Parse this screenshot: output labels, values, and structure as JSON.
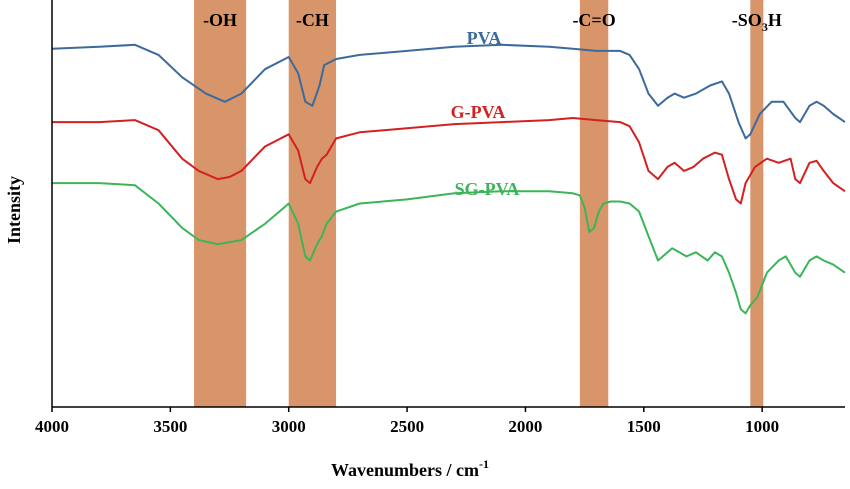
{
  "chart_data": {
    "type": "line",
    "title": "",
    "xlabel": "Wavenumbers / cm",
    "xlabel_superscript": "-1",
    "ylabel": "Intensity",
    "xlim": [
      4000,
      650
    ],
    "x_reversed": true,
    "ylim": [
      0,
      100
    ],
    "grid": false,
    "x_ticks": [
      4000,
      3500,
      3000,
      2500,
      2000,
      1500,
      1000
    ],
    "bands": [
      {
        "label": "-OH",
        "from": 3400,
        "to": 3180
      },
      {
        "label": "-CH",
        "from": 3000,
        "to": 2800
      },
      {
        "label": "-C=O",
        "from": 1770,
        "to": 1650
      },
      {
        "label": "-SO",
        "label_sub": "3",
        "label_suffix": "H",
        "from": 1050,
        "to": 995
      }
    ],
    "band_color": "#d8956a",
    "series": [
      {
        "name": "PVA",
        "color": "#3c6a9c",
        "points": [
          [
            4000,
            88
          ],
          [
            3800,
            88.5
          ],
          [
            3650,
            89
          ],
          [
            3550,
            86.5
          ],
          [
            3450,
            81
          ],
          [
            3350,
            77
          ],
          [
            3270,
            75
          ],
          [
            3200,
            77
          ],
          [
            3100,
            83
          ],
          [
            3000,
            86
          ],
          [
            2960,
            82
          ],
          [
            2930,
            75
          ],
          [
            2900,
            74
          ],
          [
            2870,
            79
          ],
          [
            2850,
            84
          ],
          [
            2800,
            85.5
          ],
          [
            2700,
            86.5
          ],
          [
            2500,
            87.5
          ],
          [
            2300,
            88.5
          ],
          [
            2100,
            89
          ],
          [
            1900,
            88.5
          ],
          [
            1800,
            88
          ],
          [
            1700,
            87.5
          ],
          [
            1600,
            87.5
          ],
          [
            1560,
            86.5
          ],
          [
            1520,
            83
          ],
          [
            1480,
            77
          ],
          [
            1440,
            74
          ],
          [
            1400,
            76
          ],
          [
            1370,
            77
          ],
          [
            1330,
            76
          ],
          [
            1280,
            77
          ],
          [
            1220,
            79
          ],
          [
            1170,
            80
          ],
          [
            1140,
            77
          ],
          [
            1100,
            70
          ],
          [
            1070,
            66
          ],
          [
            1050,
            67
          ],
          [
            1010,
            72
          ],
          [
            960,
            75
          ],
          [
            910,
            75
          ],
          [
            860,
            71
          ],
          [
            840,
            70
          ],
          [
            800,
            74
          ],
          [
            770,
            75
          ],
          [
            740,
            74
          ],
          [
            700,
            72
          ],
          [
            650,
            70
          ]
        ]
      },
      {
        "name": "G-PVA",
        "color": "#d42020",
        "points": [
          [
            4000,
            70
          ],
          [
            3800,
            70
          ],
          [
            3650,
            70.5
          ],
          [
            3550,
            68
          ],
          [
            3450,
            61
          ],
          [
            3380,
            58
          ],
          [
            3300,
            56
          ],
          [
            3250,
            56.5
          ],
          [
            3200,
            58
          ],
          [
            3100,
            64
          ],
          [
            3000,
            67
          ],
          [
            2960,
            63
          ],
          [
            2930,
            56
          ],
          [
            2910,
            55
          ],
          [
            2880,
            59
          ],
          [
            2860,
            61
          ],
          [
            2840,
            62
          ],
          [
            2800,
            66
          ],
          [
            2700,
            67.5
          ],
          [
            2500,
            68.5
          ],
          [
            2300,
            69.5
          ],
          [
            2100,
            70
          ],
          [
            1900,
            70.5
          ],
          [
            1800,
            71
          ],
          [
            1700,
            70.5
          ],
          [
            1600,
            70
          ],
          [
            1560,
            69
          ],
          [
            1520,
            65
          ],
          [
            1480,
            58
          ],
          [
            1440,
            56
          ],
          [
            1400,
            59
          ],
          [
            1370,
            60
          ],
          [
            1330,
            58
          ],
          [
            1290,
            59
          ],
          [
            1250,
            61
          ],
          [
            1200,
            62.5
          ],
          [
            1170,
            62
          ],
          [
            1140,
            56
          ],
          [
            1110,
            51
          ],
          [
            1090,
            50
          ],
          [
            1070,
            55
          ],
          [
            1030,
            59
          ],
          [
            980,
            61
          ],
          [
            930,
            60
          ],
          [
            880,
            61
          ],
          [
            860,
            56
          ],
          [
            840,
            55
          ],
          [
            800,
            60
          ],
          [
            770,
            60.5
          ],
          [
            740,
            58
          ],
          [
            700,
            55
          ],
          [
            650,
            53
          ]
        ]
      },
      {
        "name": "SG-PVA",
        "color": "#3cb55a",
        "points": [
          [
            4000,
            55
          ],
          [
            3800,
            55
          ],
          [
            3650,
            54.5
          ],
          [
            3550,
            50
          ],
          [
            3450,
            44
          ],
          [
            3380,
            41
          ],
          [
            3300,
            40
          ],
          [
            3200,
            41
          ],
          [
            3100,
            45
          ],
          [
            3020,
            49
          ],
          [
            3000,
            50
          ],
          [
            2960,
            45
          ],
          [
            2930,
            37
          ],
          [
            2910,
            36
          ],
          [
            2880,
            40
          ],
          [
            2860,
            42
          ],
          [
            2840,
            45
          ],
          [
            2800,
            48
          ],
          [
            2700,
            50
          ],
          [
            2500,
            51
          ],
          [
            2300,
            52.5
          ],
          [
            2100,
            53
          ],
          [
            1900,
            53
          ],
          [
            1800,
            52.5
          ],
          [
            1770,
            52
          ],
          [
            1750,
            49
          ],
          [
            1730,
            43
          ],
          [
            1710,
            44
          ],
          [
            1690,
            48
          ],
          [
            1670,
            50
          ],
          [
            1640,
            50.5
          ],
          [
            1600,
            50.5
          ],
          [
            1560,
            50
          ],
          [
            1520,
            48
          ],
          [
            1480,
            42
          ],
          [
            1440,
            36
          ],
          [
            1400,
            38
          ],
          [
            1380,
            39
          ],
          [
            1350,
            38
          ],
          [
            1320,
            37
          ],
          [
            1280,
            38
          ],
          [
            1230,
            36
          ],
          [
            1200,
            38
          ],
          [
            1170,
            37
          ],
          [
            1140,
            33
          ],
          [
            1110,
            28
          ],
          [
            1090,
            24
          ],
          [
            1070,
            23
          ],
          [
            1050,
            25
          ],
          [
            1020,
            27
          ],
          [
            980,
            33
          ],
          [
            930,
            36
          ],
          [
            900,
            37
          ],
          [
            880,
            35
          ],
          [
            860,
            33
          ],
          [
            840,
            32
          ],
          [
            800,
            36
          ],
          [
            770,
            37
          ],
          [
            740,
            36
          ],
          [
            700,
            35
          ],
          [
            650,
            33
          ]
        ]
      }
    ]
  }
}
